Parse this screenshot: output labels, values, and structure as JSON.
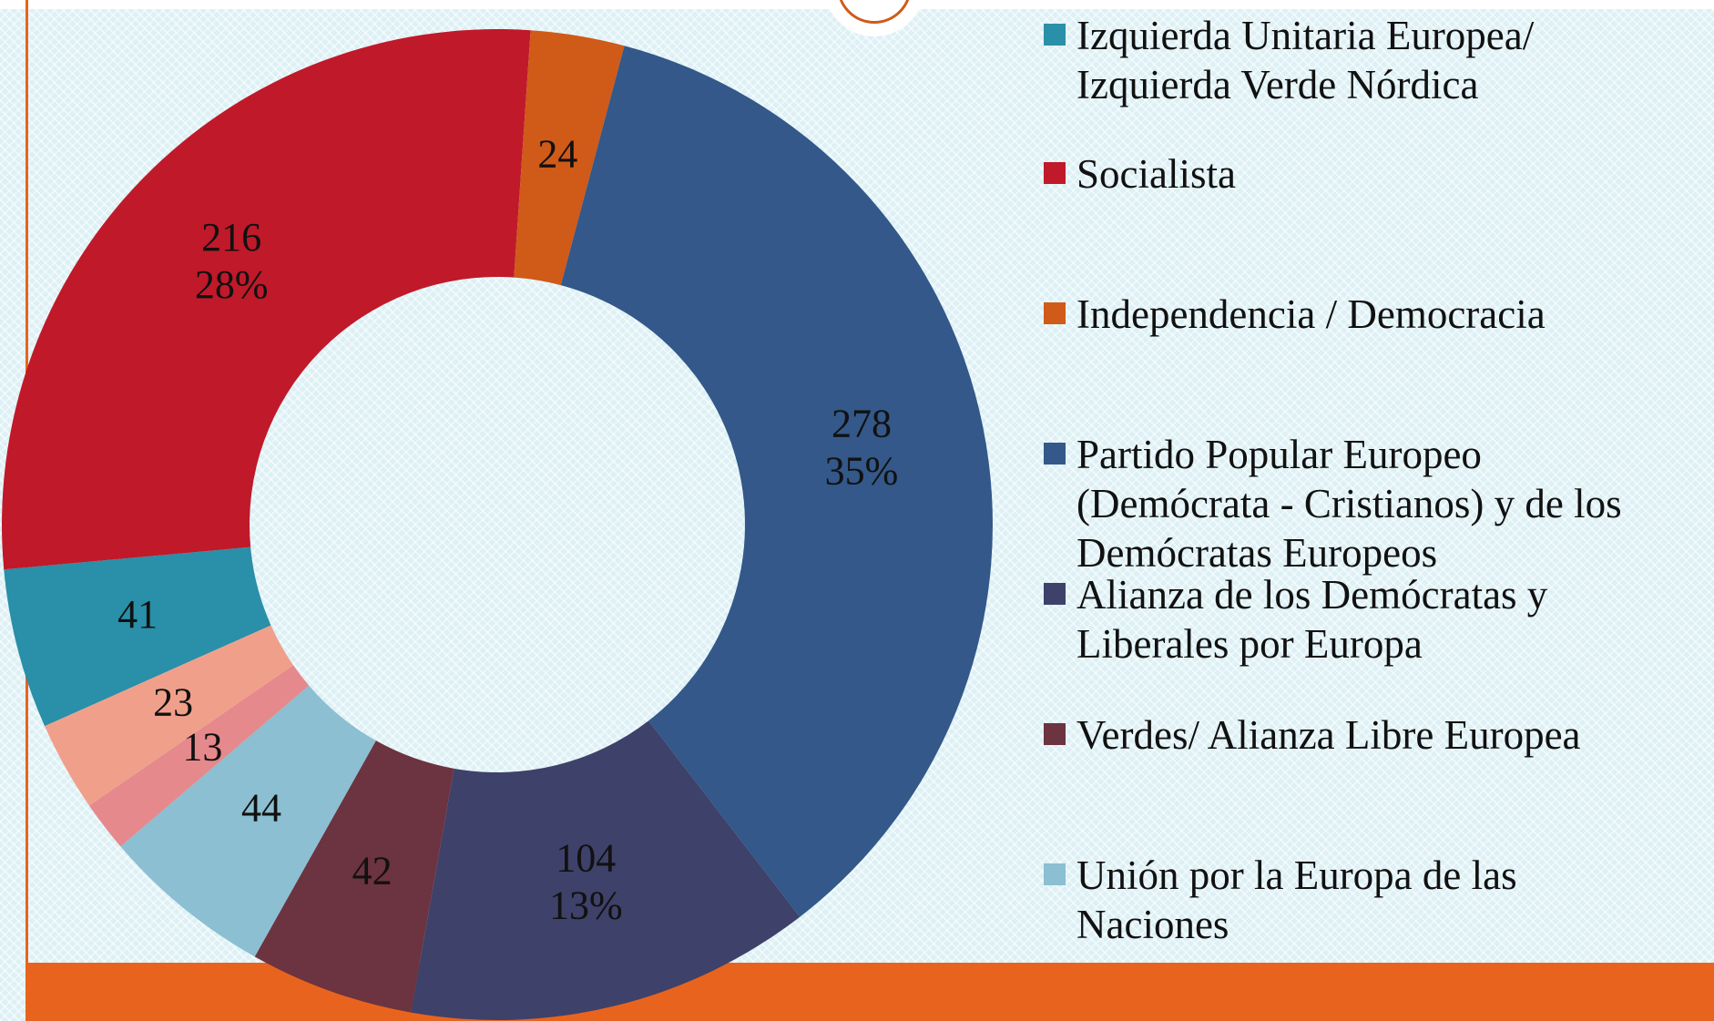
{
  "chart_data": {
    "type": "donut",
    "categories": [
      "Izquierda Unitaria Europea/\nIzquierda Verde Nórdica",
      "Socialista",
      "Independencia / Democracia",
      "Partido Popular Europeo\n(Demócrata - Cristianos) y de los\nDemócratas Europeos",
      "Alianza de los Demócratas y\nLiberales por Europa",
      "Verdes/ Alianza Libre Europea",
      "Unión por la Europa de las\nNaciones",
      null,
      null
    ],
    "values": [
      41,
      216,
      24,
      278,
      104,
      42,
      44,
      13,
      23
    ],
    "percent_labels": [
      null,
      "28%",
      null,
      "35%",
      "13%",
      null,
      null,
      null,
      null
    ],
    "colors": [
      "#2a8fa8",
      "#c0192a",
      "#d05a18",
      "#335889",
      "#3e4169",
      "#6c3340",
      "#8bbfd1",
      "#e5898c",
      "#f0a08a"
    ],
    "start_angle": 246,
    "legend": "right"
  }
}
